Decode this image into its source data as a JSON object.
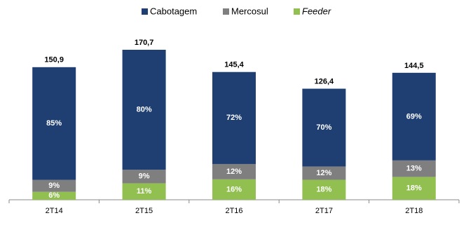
{
  "chart_data": {
    "type": "stacked-percent-bar",
    "categories": [
      "2T14",
      "2T15",
      "2T16",
      "2T17",
      "2T18"
    ],
    "totals": [
      150.9,
      170.7,
      145.4,
      126.4,
      144.5
    ],
    "total_labels": [
      "150,9",
      "170,7",
      "145,4",
      "126,4",
      "144,5"
    ],
    "series": [
      {
        "name": "Cabotagem",
        "color": "#1f3f73",
        "values": [
          85,
          80,
          72,
          70,
          69
        ],
        "value_labels": [
          "85%",
          "80%",
          "72%",
          "70%",
          "69%"
        ]
      },
      {
        "name": "Mercosul",
        "color": "#7f7f7f",
        "values": [
          9,
          9,
          12,
          12,
          13
        ],
        "value_labels": [
          "9%",
          "9%",
          "12%",
          "12%",
          "13%"
        ]
      },
      {
        "name": "Feeder",
        "color": "#92c050",
        "values": [
          6,
          11,
          16,
          18,
          18
        ],
        "value_labels": [
          "6%",
          "11%",
          "16%",
          "18%",
          "18%"
        ]
      }
    ]
  }
}
